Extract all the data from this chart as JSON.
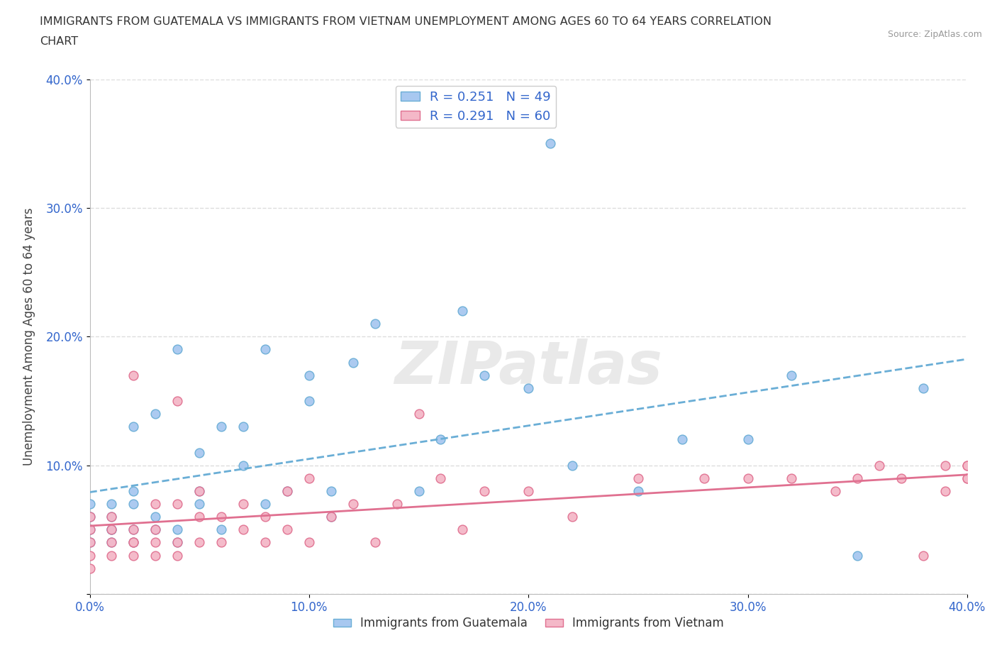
{
  "title_line1": "IMMIGRANTS FROM GUATEMALA VS IMMIGRANTS FROM VIETNAM UNEMPLOYMENT AMONG AGES 60 TO 64 YEARS CORRELATION",
  "title_line2": "CHART",
  "source": "Source: ZipAtlas.com",
  "ylabel": "Unemployment Among Ages 60 to 64 years",
  "xlim": [
    0.0,
    0.4
  ],
  "ylim": [
    0.0,
    0.4
  ],
  "xticks": [
    0.0,
    0.1,
    0.2,
    0.3,
    0.4
  ],
  "yticks": [
    0.0,
    0.1,
    0.2,
    0.3,
    0.4
  ],
  "xticklabels": [
    "0.0%",
    "10.0%",
    "20.0%",
    "30.0%",
    "40.0%"
  ],
  "yticklabels": [
    "",
    "10.0%",
    "20.0%",
    "30.0%",
    "40.0%"
  ],
  "guatemala_color": "#a8c8f0",
  "guatemala_edge": "#6aaed6",
  "vietnam_color": "#f4b8c8",
  "vietnam_edge": "#e07090",
  "guatemala_R": 0.251,
  "guatemala_N": 49,
  "vietnam_R": 0.291,
  "vietnam_N": 60,
  "legend_label_guatemala": "Immigrants from Guatemala",
  "legend_label_vietnam": "Immigrants from Vietnam",
  "watermark": "ZIPatlas",
  "background_color": "#ffffff",
  "grid_color": "#dddddd",
  "trend_color_guatemala": "#6aaed6",
  "trend_color_vietnam": "#e07090",
  "guatemala_x": [
    0.0,
    0.0,
    0.0,
    0.0,
    0.01,
    0.01,
    0.01,
    0.01,
    0.01,
    0.02,
    0.02,
    0.02,
    0.02,
    0.02,
    0.03,
    0.03,
    0.03,
    0.04,
    0.04,
    0.04,
    0.05,
    0.05,
    0.05,
    0.06,
    0.06,
    0.07,
    0.07,
    0.08,
    0.08,
    0.09,
    0.1,
    0.1,
    0.11,
    0.11,
    0.12,
    0.13,
    0.15,
    0.16,
    0.17,
    0.18,
    0.2,
    0.21,
    0.22,
    0.25,
    0.27,
    0.3,
    0.32,
    0.35,
    0.38
  ],
  "guatemala_y": [
    0.04,
    0.05,
    0.06,
    0.07,
    0.04,
    0.05,
    0.05,
    0.06,
    0.07,
    0.04,
    0.05,
    0.07,
    0.08,
    0.13,
    0.05,
    0.06,
    0.14,
    0.04,
    0.05,
    0.19,
    0.07,
    0.08,
    0.11,
    0.05,
    0.13,
    0.1,
    0.13,
    0.07,
    0.19,
    0.08,
    0.15,
    0.17,
    0.06,
    0.08,
    0.18,
    0.21,
    0.08,
    0.12,
    0.22,
    0.17,
    0.16,
    0.35,
    0.1,
    0.08,
    0.12,
    0.12,
    0.17,
    0.03,
    0.16
  ],
  "vietnam_x": [
    0.0,
    0.0,
    0.0,
    0.0,
    0.0,
    0.01,
    0.01,
    0.01,
    0.01,
    0.02,
    0.02,
    0.02,
    0.02,
    0.02,
    0.03,
    0.03,
    0.03,
    0.03,
    0.04,
    0.04,
    0.04,
    0.04,
    0.05,
    0.05,
    0.05,
    0.06,
    0.06,
    0.07,
    0.07,
    0.08,
    0.08,
    0.09,
    0.09,
    0.1,
    0.1,
    0.11,
    0.12,
    0.13,
    0.14,
    0.15,
    0.16,
    0.17,
    0.18,
    0.2,
    0.22,
    0.25,
    0.28,
    0.3,
    0.32,
    0.34,
    0.35,
    0.36,
    0.37,
    0.38,
    0.39,
    0.39,
    0.4,
    0.4,
    0.4,
    0.4
  ],
  "vietnam_y": [
    0.02,
    0.03,
    0.04,
    0.05,
    0.06,
    0.03,
    0.04,
    0.05,
    0.06,
    0.03,
    0.04,
    0.04,
    0.05,
    0.17,
    0.03,
    0.04,
    0.05,
    0.07,
    0.03,
    0.04,
    0.07,
    0.15,
    0.04,
    0.06,
    0.08,
    0.04,
    0.06,
    0.05,
    0.07,
    0.04,
    0.06,
    0.05,
    0.08,
    0.04,
    0.09,
    0.06,
    0.07,
    0.04,
    0.07,
    0.14,
    0.09,
    0.05,
    0.08,
    0.08,
    0.06,
    0.09,
    0.09,
    0.09,
    0.09,
    0.08,
    0.09,
    0.1,
    0.09,
    0.03,
    0.08,
    0.1,
    0.09,
    0.09,
    0.1,
    0.1
  ]
}
